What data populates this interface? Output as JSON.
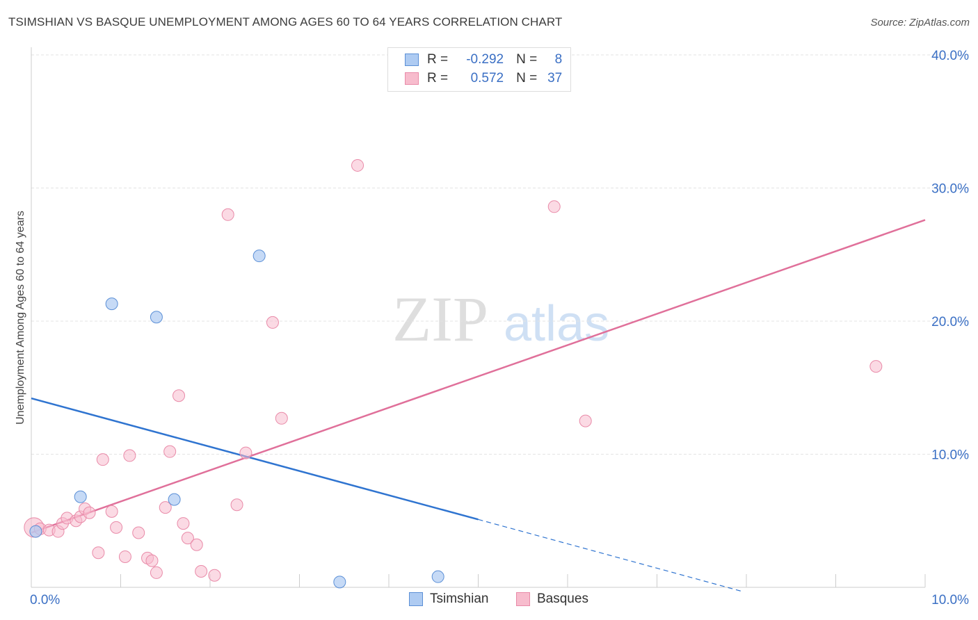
{
  "title": "TSIMSHIAN VS BASQUE UNEMPLOYMENT AMONG AGES 60 TO 64 YEARS CORRELATION CHART",
  "source": "Source: ZipAtlas.com",
  "watermark": {
    "zip": "ZIP",
    "atlas": "atlas"
  },
  "legend": {
    "rows": [
      {
        "r_label": "R =",
        "r_value": "-0.292",
        "n_label": "N =",
        "n_value": "8"
      },
      {
        "r_label": "R =",
        "r_value": "0.572",
        "n_label": "N =",
        "n_value": "37"
      }
    ]
  },
  "colors": {
    "tsimshian_fill": "#aecbf2",
    "tsimshian_stroke": "#5b8fd6",
    "tsimshian_line": "#2f74d0",
    "basques_fill": "#f7bccd",
    "basques_stroke": "#e98aa8",
    "basques_line": "#e0709a",
    "tick_label": "#3a6fc4",
    "grid": "#e3e3e3"
  },
  "chart_data": {
    "type": "scatter",
    "title": "TSIMSHIAN VS BASQUE UNEMPLOYMENT AMONG AGES 60 TO 64 YEARS CORRELATION CHART",
    "xlabel": "",
    "ylabel": "Unemployment Among Ages 60 to 64 years",
    "xlim": [
      0,
      10
    ],
    "ylim": [
      0,
      40
    ],
    "x_tick_labels": [
      "0.0%",
      "10.0%"
    ],
    "y_ticks": [
      10,
      20,
      30,
      40
    ],
    "y_tick_labels": [
      "10.0%",
      "20.0%",
      "30.0%",
      "40.0%"
    ],
    "legend_position": "bottom-center",
    "series": [
      {
        "name": "Tsimshian",
        "points": [
          [
            0.05,
            4.2
          ],
          [
            0.55,
            6.8
          ],
          [
            0.9,
            21.3
          ],
          [
            1.4,
            20.3
          ],
          [
            1.6,
            6.6
          ],
          [
            2.55,
            24.9
          ],
          [
            3.45,
            0.4
          ],
          [
            4.55,
            0.8
          ]
        ],
        "trend": {
          "x": [
            0,
            5.0
          ],
          "y": [
            14.2,
            5.1
          ]
        },
        "trend_extension": {
          "x": [
            5.0,
            7.95
          ],
          "y": [
            5.1,
            -0.3
          ]
        }
      },
      {
        "name": "Basques",
        "points": [
          [
            0.03,
            4.5
          ],
          [
            0.1,
            4.4
          ],
          [
            0.2,
            4.3
          ],
          [
            0.3,
            4.2
          ],
          [
            0.35,
            4.8
          ],
          [
            0.4,
            5.2
          ],
          [
            0.5,
            5.0
          ],
          [
            0.55,
            5.3
          ],
          [
            0.6,
            5.9
          ],
          [
            0.65,
            5.6
          ],
          [
            0.75,
            2.6
          ],
          [
            0.8,
            9.6
          ],
          [
            0.9,
            5.7
          ],
          [
            0.95,
            4.5
          ],
          [
            1.05,
            2.3
          ],
          [
            1.1,
            9.9
          ],
          [
            1.2,
            4.1
          ],
          [
            1.3,
            2.2
          ],
          [
            1.35,
            2.0
          ],
          [
            1.4,
            1.1
          ],
          [
            1.5,
            6.0
          ],
          [
            1.55,
            10.2
          ],
          [
            1.65,
            14.4
          ],
          [
            1.7,
            4.8
          ],
          [
            1.75,
            3.7
          ],
          [
            1.85,
            3.2
          ],
          [
            1.9,
            1.2
          ],
          [
            2.05,
            0.9
          ],
          [
            2.2,
            28.0
          ],
          [
            2.3,
            6.2
          ],
          [
            2.4,
            10.1
          ],
          [
            2.7,
            19.9
          ],
          [
            2.8,
            12.7
          ],
          [
            3.65,
            31.7
          ],
          [
            5.85,
            28.6
          ],
          [
            6.2,
            12.5
          ],
          [
            9.45,
            16.6
          ]
        ],
        "trend": {
          "x": [
            0,
            10
          ],
          "y": [
            4.1,
            27.6
          ]
        }
      }
    ]
  },
  "bottom_legend": [
    "Tsimshian",
    "Basques"
  ]
}
